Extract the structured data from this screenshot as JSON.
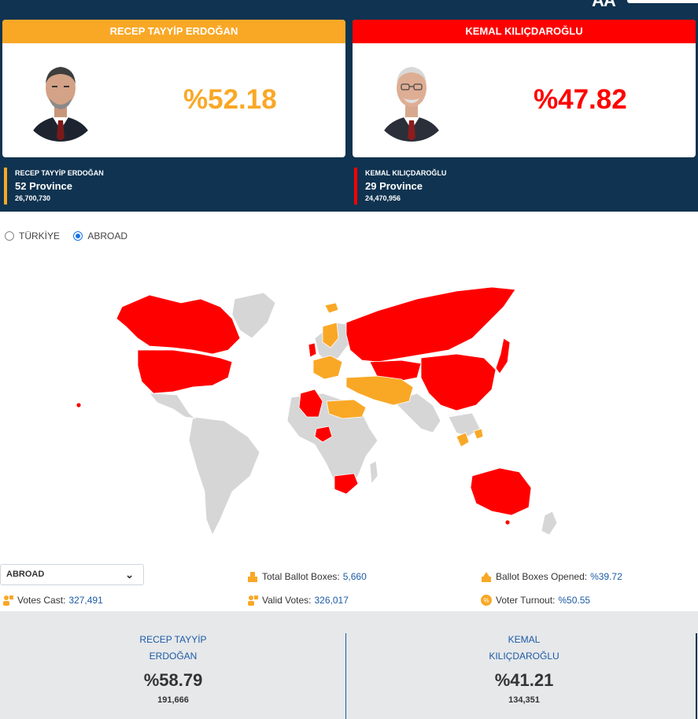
{
  "brand": {
    "letters": "AA"
  },
  "candidates": [
    {
      "name": "RECEP TAYYİP ERDOĞAN",
      "percent": "%52.18",
      "provinces": "52 Province",
      "votes": "26,700,730",
      "color": "#f9a826"
    },
    {
      "name": "KEMAL KILIÇDAROĞLU",
      "percent": "%47.82",
      "provinces": "29 Province",
      "votes": "24,470,956",
      "color": "#ff0000"
    }
  ],
  "region_toggle": {
    "options": [
      "TÜRKİYE",
      "ABROAD"
    ],
    "selected": "ABROAD"
  },
  "map": {
    "colors": {
      "erdogan": "#f9a826",
      "kilicdaroglu": "#ff0000",
      "no_data": "#d6d6d6"
    }
  },
  "region_select": {
    "value": "ABROAD"
  },
  "stats": {
    "total_ballot_boxes": {
      "label": "Total Ballot Boxes:",
      "value": "5,660"
    },
    "ballot_boxes_opened": {
      "label": "Ballot Boxes Opened:",
      "value": "%39.72"
    },
    "votes_cast": {
      "label": "Votes Cast:",
      "value": "327,491"
    },
    "valid_votes": {
      "label": "Valid Votes:",
      "value": "326,017"
    },
    "voter_turnout": {
      "label": "Voter Turnout:",
      "value": "%50.55"
    }
  },
  "abroad_results": [
    {
      "name_line1": "RECEP TAYYİP",
      "name_line2": "ERDOĞAN",
      "percent": "%58.79",
      "votes": "191,666"
    },
    {
      "name_line1": "KEMAL",
      "name_line2": "KILIÇDAROĞLU",
      "percent": "%41.21",
      "votes": "134,351"
    }
  ]
}
